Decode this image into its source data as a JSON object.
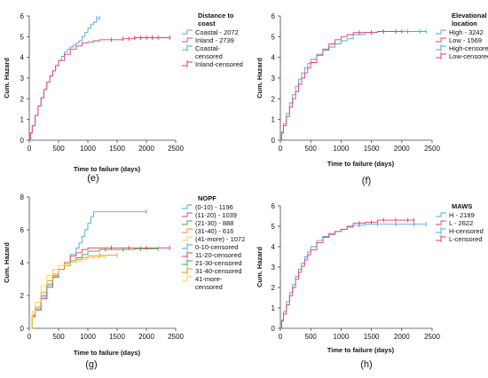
{
  "chart_data": [
    {
      "type": "line",
      "caption": "(e)",
      "xlabel": "Time to failure (days)",
      "ylabel": "Cum. Hazard",
      "xlim": [
        0,
        2500
      ],
      "ylim": [
        0,
        6
      ],
      "xticks": [
        0,
        500,
        1000,
        1500,
        2000,
        2500
      ],
      "yticks": [
        0,
        1,
        2,
        3,
        4,
        5,
        6
      ],
      "legend_title": "Distance to coast",
      "legend_title_lines": [
        "Distance to",
        "coast"
      ],
      "legend_position": "right",
      "legend": [
        {
          "label": "Coastal - 2072",
          "color": "#4ea6dc",
          "kind": "line"
        },
        {
          "label": "Inland - 2739",
          "color": "#e8396b",
          "kind": "line"
        },
        {
          "label": "Coastal-censored",
          "lines": [
            "Coastal-",
            "censored"
          ],
          "color": "#4ea6dc",
          "kind": "censor"
        },
        {
          "label": "Inland-censored",
          "color": "#e8396b",
          "kind": "censor"
        }
      ],
      "series": [
        {
          "name": "Coastal - 2072",
          "color": "#4ea6dc",
          "x": [
            0,
            20,
            50,
            100,
            150,
            200,
            250,
            300,
            350,
            400,
            450,
            500,
            550,
            600,
            650,
            700,
            750,
            800,
            850,
            900,
            950,
            1000,
            1050,
            1100,
            1150,
            1200
          ],
          "y": [
            0,
            0.35,
            0.7,
            1.2,
            1.65,
            2.05,
            2.45,
            2.8,
            3.1,
            3.35,
            3.6,
            3.85,
            4.05,
            4.25,
            4.4,
            4.5,
            4.6,
            4.7,
            4.8,
            5.0,
            5.2,
            5.4,
            5.6,
            5.7,
            5.9,
            5.9
          ]
        },
        {
          "name": "Inland - 2739",
          "color": "#e8396b",
          "x": [
            0,
            20,
            50,
            100,
            150,
            200,
            250,
            300,
            350,
            400,
            450,
            500,
            600,
            700,
            800,
            900,
            1000,
            1100,
            1200,
            1400,
            1600,
            1800,
            2000,
            2200,
            2400
          ],
          "y": [
            0,
            0.35,
            0.7,
            1.2,
            1.65,
            2.05,
            2.45,
            2.8,
            3.1,
            3.35,
            3.6,
            3.85,
            4.15,
            4.4,
            4.55,
            4.7,
            4.75,
            4.8,
            4.85,
            4.85,
            4.9,
            4.95,
            4.95,
            4.95,
            4.95
          ]
        }
      ],
      "censor_marks": [
        {
          "series": "Coastal - 2072",
          "x": [
            1150,
            1200
          ]
        },
        {
          "series": "Inland - 2739",
          "x": [
            1400,
            1600,
            1700,
            1800,
            1900,
            2000,
            2100,
            2200,
            2400
          ]
        }
      ]
    },
    {
      "type": "line",
      "caption": "(f)",
      "xlabel": "Time to failure (days)",
      "ylabel": "Cum. Hazard",
      "xlim": [
        0,
        2500
      ],
      "ylim": [
        0,
        6
      ],
      "xticks": [
        0,
        500,
        1000,
        1500,
        2000,
        2500
      ],
      "yticks": [
        0,
        1,
        2,
        3,
        4,
        5,
        6
      ],
      "legend_title": "Elevational location",
      "legend_title_lines": [
        "Elevational",
        "location"
      ],
      "legend_position": "right",
      "legend": [
        {
          "label": "High - 3242",
          "color": "#4ea6dc",
          "kind": "line"
        },
        {
          "label": "Low - 1569",
          "color": "#e8396b",
          "kind": "line"
        },
        {
          "label": "High-censored",
          "color": "#4ea6dc",
          "kind": "censor"
        },
        {
          "label": "Low-censored",
          "color": "#e8396b",
          "kind": "censor"
        }
      ],
      "series": [
        {
          "name": "High - 3242",
          "color": "#4ea6dc",
          "x": [
            0,
            20,
            50,
            100,
            150,
            200,
            250,
            300,
            350,
            400,
            450,
            500,
            600,
            700,
            800,
            900,
            1000,
            1100,
            1200,
            1400,
            1600,
            1800,
            2000,
            2200,
            2400
          ],
          "y": [
            0,
            0.4,
            0.8,
            1.3,
            1.8,
            2.2,
            2.6,
            2.95,
            3.25,
            3.5,
            3.7,
            3.9,
            4.15,
            4.35,
            4.5,
            4.65,
            4.8,
            4.9,
            5.1,
            5.2,
            5.25,
            5.25,
            5.25,
            5.25,
            5.25
          ]
        },
        {
          "name": "Low - 1569",
          "color": "#e8396b",
          "x": [
            0,
            20,
            50,
            100,
            150,
            200,
            250,
            300,
            350,
            400,
            450,
            500,
            600,
            700,
            800,
            900,
            1000,
            1100,
            1200,
            1400,
            1600,
            1800,
            2000
          ],
          "y": [
            0,
            0.35,
            0.7,
            1.15,
            1.6,
            2.0,
            2.35,
            2.7,
            3.0,
            3.25,
            3.5,
            3.75,
            4.1,
            4.4,
            4.65,
            4.85,
            5.0,
            5.1,
            5.2,
            5.2,
            5.25,
            5.25,
            5.25
          ]
        }
      ],
      "censor_marks": [
        {
          "series": "High - 3242",
          "x": [
            1500,
            1700,
            1900,
            2100,
            2300,
            2400
          ]
        },
        {
          "series": "Low - 1569",
          "x": [
            1300,
            1500,
            1700,
            1900,
            2000
          ]
        }
      ]
    },
    {
      "type": "line",
      "caption": "(g)",
      "xlabel": "Time to failure (days)",
      "ylabel": "Cum. Hazard",
      "xlim": [
        0,
        2500
      ],
      "ylim": [
        0,
        8
      ],
      "xticks": [
        0,
        500,
        1000,
        1500,
        2000,
        2500
      ],
      "yticks": [
        0,
        2,
        4,
        6,
        8
      ],
      "legend_title": "NOPF",
      "legend_position": "right",
      "legend": [
        {
          "label": "(0-10) - 1196",
          "color": "#4ea6dc",
          "kind": "line"
        },
        {
          "label": "(11-20) - 1039",
          "color": "#e8396b",
          "kind": "line"
        },
        {
          "label": "(21-30) - 888",
          "color": "#3aa84a",
          "kind": "line"
        },
        {
          "label": "(31-40) - 616",
          "color": "#f08a24",
          "kind": "line"
        },
        {
          "label": "(41-more) - 1072",
          "color": "#f4d43a",
          "kind": "line"
        },
        {
          "label": "0-10-censored",
          "color": "#4ea6dc",
          "kind": "censor"
        },
        {
          "label": "11-20-censored",
          "color": "#e8396b",
          "kind": "censor"
        },
        {
          "label": "21-30-censored",
          "color": "#3aa84a",
          "kind": "censor"
        },
        {
          "label": "31-40-censored",
          "color": "#f08a24",
          "kind": "censor"
        },
        {
          "label": "41-more-censored",
          "lines": [
            "41-more-",
            "censored"
          ],
          "color": "#f4d43a",
          "kind": "censor"
        }
      ],
      "series": [
        {
          "name": "(0-10) - 1196",
          "color": "#4ea6dc",
          "x": [
            0,
            50,
            100,
            200,
            300,
            400,
            500,
            600,
            700,
            800,
            850,
            900,
            950,
            1000,
            1050,
            1100,
            1150,
            1200,
            1500,
            1800,
            2000
          ],
          "y": [
            0,
            0.7,
            1.1,
            1.9,
            2.6,
            3.2,
            3.6,
            4.0,
            4.5,
            4.9,
            5.2,
            5.6,
            6.0,
            6.4,
            6.8,
            7.1,
            7.1,
            7.1,
            7.1,
            7.1,
            7.1
          ]
        },
        {
          "name": "(11-20) - 1039",
          "color": "#e8396b",
          "x": [
            0,
            50,
            100,
            200,
            300,
            400,
            500,
            600,
            700,
            800,
            900,
            1000,
            1200,
            1500,
            1800,
            2000,
            2200,
            2400
          ],
          "y": [
            0,
            0.7,
            1.1,
            1.8,
            2.5,
            3.1,
            3.6,
            4.0,
            4.4,
            4.6,
            4.8,
            4.9,
            4.9,
            4.9,
            4.9,
            4.9,
            4.9,
            4.9
          ]
        },
        {
          "name": "(21-30) - 888",
          "color": "#3aa84a",
          "x": [
            0,
            50,
            100,
            200,
            300,
            400,
            500,
            600,
            700,
            800,
            900,
            1000,
            1200,
            1500,
            1800,
            2000,
            2200
          ],
          "y": [
            0,
            0.8,
            1.2,
            2.0,
            2.7,
            3.2,
            3.6,
            3.9,
            4.1,
            4.3,
            4.5,
            4.7,
            4.8,
            4.8,
            4.85,
            4.85,
            4.85
          ]
        },
        {
          "name": "(31-40) - 616",
          "color": "#f08a24",
          "x": [
            0,
            50,
            100,
            200,
            300,
            400,
            500,
            600,
            700,
            800,
            900,
            1000,
            1200,
            1500
          ],
          "y": [
            0,
            0.8,
            1.3,
            2.2,
            2.9,
            3.3,
            3.6,
            3.8,
            4.0,
            4.2,
            4.3,
            4.4,
            4.45,
            4.45
          ]
        },
        {
          "name": "(41-more) - 1072",
          "color": "#f4d43a",
          "x": [
            0,
            50,
            100,
            200,
            300,
            400,
            500,
            600,
            700,
            800,
            900,
            1000,
            1200,
            1300
          ],
          "y": [
            0,
            1.0,
            1.6,
            2.6,
            3.2,
            3.6,
            3.8,
            3.9,
            4.0,
            4.1,
            4.2,
            4.3,
            4.35,
            4.35
          ]
        }
      ],
      "censor_marks": [
        {
          "series": "(0-10) - 1196",
          "x": [
            2000
          ]
        },
        {
          "series": "(11-20) - 1039",
          "x": [
            1400,
            1700,
            2000,
            2400
          ]
        },
        {
          "series": "(21-30) - 888",
          "x": [
            1300,
            1600,
            1900,
            2200
          ]
        },
        {
          "series": "(31-40) - 616",
          "x": [
            1200,
            1500
          ]
        },
        {
          "series": "(41-more) - 1072",
          "x": [
            1100,
            1300
          ]
        }
      ]
    },
    {
      "type": "line",
      "caption": "(h)",
      "xlabel": "Time to failure (days)",
      "ylabel": "Cum. Hazard",
      "xlim": [
        0,
        2500
      ],
      "ylim": [
        0,
        6
      ],
      "xticks": [
        0,
        500,
        1000,
        1500,
        2000,
        2500
      ],
      "yticks": [
        0,
        1,
        2,
        3,
        4,
        5,
        6
      ],
      "legend_title": "MAWS",
      "legend_position": "right",
      "legend": [
        {
          "label": "H - 2189",
          "color": "#4ea6dc",
          "kind": "line"
        },
        {
          "label": "L - 2622",
          "color": "#e8396b",
          "kind": "line"
        },
        {
          "label": "H-censored",
          "color": "#4ea6dc",
          "kind": "censor"
        },
        {
          "label": "L-censored",
          "color": "#e8396b",
          "kind": "censor"
        }
      ],
      "series": [
        {
          "name": "H - 2189",
          "color": "#4ea6dc",
          "x": [
            0,
            20,
            50,
            100,
            150,
            200,
            250,
            300,
            350,
            400,
            450,
            500,
            600,
            700,
            800,
            900,
            1000,
            1100,
            1200,
            1400,
            1600,
            1800,
            2000,
            2200,
            2400
          ],
          "y": [
            0,
            0.4,
            0.8,
            1.3,
            1.75,
            2.15,
            2.55,
            2.9,
            3.2,
            3.5,
            3.75,
            4.0,
            4.3,
            4.5,
            4.65,
            4.75,
            4.85,
            4.95,
            5.05,
            5.1,
            5.1,
            5.1,
            5.1,
            5.1,
            5.1
          ]
        },
        {
          "name": "L - 2622",
          "color": "#e8396b",
          "x": [
            0,
            20,
            50,
            100,
            150,
            200,
            250,
            300,
            350,
            400,
            450,
            500,
            600,
            700,
            800,
            900,
            1000,
            1100,
            1200,
            1400,
            1600,
            1800,
            2000,
            2200
          ],
          "y": [
            0,
            0.35,
            0.7,
            1.15,
            1.6,
            2.0,
            2.4,
            2.75,
            3.05,
            3.35,
            3.6,
            3.85,
            4.2,
            4.45,
            4.6,
            4.75,
            4.85,
            5.0,
            5.15,
            5.2,
            5.3,
            5.3,
            5.3,
            5.3
          ]
        }
      ],
      "censor_marks": [
        {
          "series": "H - 2189",
          "x": [
            1300,
            1600,
            1900,
            2200,
            2400
          ]
        },
        {
          "series": "L - 2622",
          "x": [
            1300,
            1500,
            1700,
            1900,
            2100,
            2200
          ]
        }
      ]
    }
  ]
}
